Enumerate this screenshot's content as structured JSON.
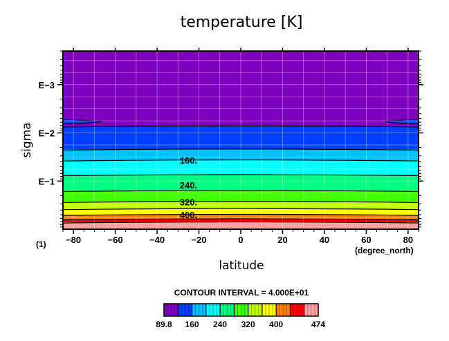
{
  "chart_data": {
    "type": "heatmap",
    "title": "temperature [K]",
    "xlabel": "latitude",
    "ylabel": "sigma",
    "x_unit": "(degree_north)",
    "y_unit": "(1)",
    "xlim": [
      -85,
      85
    ],
    "x_ticks": [
      -80,
      -60,
      -40,
      -20,
      0,
      20,
      40,
      60,
      80
    ],
    "x_tick_labels": [
      "−80",
      "−60",
      "−40",
      "−20",
      "0",
      "20",
      "40",
      "60",
      "80"
    ],
    "y_scale": "log",
    "ylim": [
      0.0002,
      1
    ],
    "y_ticks": [
      0.001,
      0.01,
      0.1
    ],
    "y_tick_labels": [
      "E−3",
      "E−2",
      "E−1"
    ],
    "grid": true,
    "contour_interval_text": "CONTOUR INTERVAL = 4.000E+01",
    "contour_levels": [
      120,
      160,
      200,
      240,
      280,
      320,
      360,
      400,
      440
    ],
    "contour_labels": [
      {
        "text": "160.",
        "value": 160
      },
      {
        "text": "240.",
        "value": 240
      },
      {
        "text": "320.",
        "value": 320
      },
      {
        "text": "400.",
        "value": 400
      }
    ],
    "fill_bands": [
      {
        "min": 89.8,
        "max": 120,
        "color": "#8000c0"
      },
      {
        "min": 120,
        "max": 160,
        "color": "#0040ff"
      },
      {
        "min": 160,
        "max": 200,
        "color": "#00c0ff"
      },
      {
        "min": 200,
        "max": 240,
        "color": "#00ffff"
      },
      {
        "min": 240,
        "max": 280,
        "color": "#00ff80"
      },
      {
        "min": 280,
        "max": 320,
        "color": "#40ff00"
      },
      {
        "min": 320,
        "max": 360,
        "color": "#c0ff00"
      },
      {
        "min": 360,
        "max": 400,
        "color": "#ffff00"
      },
      {
        "min": 400,
        "max": 440,
        "color": "#ff8000"
      },
      {
        "min": 440,
        "max": 474,
        "color": "#ff0000"
      }
    ],
    "layers": [
      {
        "sigma_top": 0.0002,
        "sigma_bottom": 0.0073,
        "color": "#8000c0",
        "value_range": [
          89.8,
          120
        ]
      },
      {
        "sigma_top": 0.0073,
        "sigma_bottom": 0.022,
        "color": "#0040ff",
        "value_range": [
          120,
          160
        ]
      },
      {
        "sigma_top": 0.022,
        "sigma_bottom": 0.037,
        "color": "#00c0ff",
        "value_range": [
          160,
          200
        ]
      },
      {
        "sigma_top": 0.037,
        "sigma_bottom": 0.075,
        "color": "#00ffff",
        "value_range": [
          200,
          240
        ]
      },
      {
        "sigma_top": 0.075,
        "sigma_bottom": 0.16,
        "color": "#00ff80",
        "value_range": [
          240,
          280
        ]
      },
      {
        "sigma_top": 0.16,
        "sigma_bottom": 0.27,
        "color": "#40ff00",
        "value_range": [
          280,
          320
        ]
      },
      {
        "sigma_top": 0.27,
        "sigma_bottom": 0.38,
        "color": "#c0ff00",
        "value_range": [
          320,
          360
        ]
      },
      {
        "sigma_top": 0.38,
        "sigma_bottom": 0.5,
        "color": "#ffff00",
        "value_range": [
          360,
          400
        ]
      },
      {
        "sigma_top": 0.5,
        "sigma_bottom": 0.62,
        "color": "#ff8000",
        "value_range": [
          400,
          440
        ]
      },
      {
        "sigma_top": 0.62,
        "sigma_bottom": 0.72,
        "color": "#ff0000",
        "value_range": [
          440,
          474
        ]
      },
      {
        "sigma_top": 0.72,
        "sigma_bottom": 1.0,
        "color": "#ffa0a0",
        "value_range": [
          440,
          474
        ]
      }
    ],
    "colorbar": {
      "colors": [
        "#8000c0",
        "#0040ff",
        "#00c0ff",
        "#00ffff",
        "#00ff80",
        "#40ff00",
        "#c0ff00",
        "#ffff00",
        "#ff8000",
        "#ff0000",
        "#ffa0a0"
      ],
      "labels": [
        "89.8",
        "160",
        "240",
        "320",
        "400",
        "474"
      ]
    }
  }
}
